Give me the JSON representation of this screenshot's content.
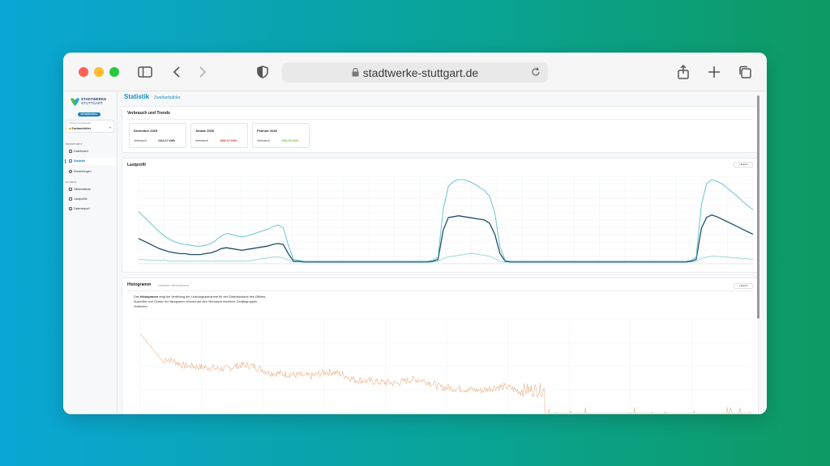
{
  "browser": {
    "url": "stadtwerke-stuttgart.de"
  },
  "sidebar": {
    "brand_line1": "STADTWERKE",
    "brand_line2": "STUTTGART",
    "role_badge": "NUTZERPORTAL",
    "meter_label": "ZÄHLER AUSWÄHLEN",
    "meter_value": "Zweitanfzähler",
    "section_measurement": "MESSPUNKT",
    "section_global": "GLOBAL",
    "items": [
      {
        "label": "Dashboard",
        "icon": "dashboard-icon"
      },
      {
        "label": "Statistik",
        "icon": "chart-icon",
        "active": true
      },
      {
        "label": "Einstellungen",
        "icon": "gear-icon"
      },
      {
        "label": "Zählerstände",
        "icon": "meter-icon"
      },
      {
        "label": "Lastprofile",
        "icon": "profile-icon"
      },
      {
        "label": "Datenexport",
        "icon": "file-icon"
      }
    ]
  },
  "page": {
    "title": "Statistik",
    "subtitle": "Zweitanfzähler"
  },
  "trends": {
    "title": "Verbrauch und Trends",
    "months": [
      {
        "month": "Dezember 2025",
        "label": "Verbrauch",
        "value": "1413.17 kWh",
        "trend": "none"
      },
      {
        "month": "Januar 2026",
        "label": "Verbrauch",
        "value": "1886.22 kWh ↑",
        "trend": "up"
      },
      {
        "month": "Februar 2026",
        "label": "Verbrauch",
        "value": "1081.53 kWh ↓",
        "trend": "down"
      }
    ]
  },
  "lastprofil": {
    "title": "Lastprofil",
    "export_label": "⤓ Export"
  },
  "histogram": {
    "title": "Histogramm",
    "subtitle": "Gesamter Messzeitraum",
    "export_label": "⤓ Export",
    "description_prefix": "Das ",
    "description_bold": "Histogramm",
    "description_rest": " zeigt die Verteilung der Leistungsaufnahme für den Datenbestand des Zählers. Ausreißer und Cluster im Histogramm können auf den Verbrauch einzelner Gerätegruppen hindeuten."
  },
  "colors": {
    "accent": "#1b8fc2",
    "series_light": "#6cc4cf",
    "series_dark": "#1f4f66",
    "histogram": "#e9b48c"
  },
  "chart_data": [
    {
      "type": "line",
      "title": "Lastprofil",
      "x_count": 120,
      "series": [
        {
          "name": "",
          "color": "#6cc4cf",
          "values": [
            0.62,
            0.56,
            0.5,
            0.44,
            0.38,
            0.33,
            0.29,
            0.26,
            0.24,
            0.23,
            0.22,
            0.21,
            0.21,
            0.22,
            0.24,
            0.28,
            0.33,
            0.36,
            0.35,
            0.33,
            0.32,
            0.33,
            0.35,
            0.37,
            0.39,
            0.41,
            0.44,
            0.46,
            0.43,
            0.22,
            0.05,
            0.04,
            0.03,
            0.03,
            0.03,
            0.03,
            0.03,
            0.03,
            0.03,
            0.03,
            0.03,
            0.03,
            0.03,
            0.03,
            0.03,
            0.03,
            0.03,
            0.03,
            0.03,
            0.03,
            0.03,
            0.03,
            0.03,
            0.03,
            0.03,
            0.03,
            0.03,
            0.04,
            0.08,
            0.65,
            0.92,
            0.98,
            1.0,
            1.0,
            0.98,
            0.95,
            0.91,
            0.87,
            0.8,
            0.6,
            0.2,
            0.04,
            0.03,
            0.03,
            0.03,
            0.03,
            0.03,
            0.03,
            0.03,
            0.03,
            0.03,
            0.03,
            0.03,
            0.03,
            0.03,
            0.03,
            0.03,
            0.03,
            0.03,
            0.03,
            0.03,
            0.03,
            0.03,
            0.03,
            0.03,
            0.03,
            0.03,
            0.03,
            0.03,
            0.03,
            0.03,
            0.03,
            0.03,
            0.03,
            0.03,
            0.03,
            0.03,
            0.04,
            0.08,
            0.7,
            0.95,
            1.0,
            0.98,
            0.95,
            0.9,
            0.85,
            0.8,
            0.74,
            0.69,
            0.64
          ]
        },
        {
          "name": "",
          "color": "#1f4f66",
          "values": [
            0.3,
            0.27,
            0.24,
            0.21,
            0.18,
            0.16,
            0.14,
            0.13,
            0.12,
            0.12,
            0.11,
            0.11,
            0.11,
            0.12,
            0.13,
            0.15,
            0.18,
            0.19,
            0.18,
            0.17,
            0.16,
            0.17,
            0.18,
            0.19,
            0.2,
            0.21,
            0.23,
            0.24,
            0.23,
            0.12,
            0.03,
            0.03,
            0.02,
            0.02,
            0.02,
            0.02,
            0.02,
            0.02,
            0.02,
            0.02,
            0.02,
            0.02,
            0.02,
            0.02,
            0.02,
            0.02,
            0.02,
            0.02,
            0.02,
            0.02,
            0.02,
            0.02,
            0.02,
            0.02,
            0.02,
            0.02,
            0.02,
            0.03,
            0.05,
            0.4,
            0.55,
            0.56,
            0.57,
            0.56,
            0.55,
            0.54,
            0.53,
            0.52,
            0.48,
            0.35,
            0.12,
            0.03,
            0.02,
            0.02,
            0.02,
            0.02,
            0.02,
            0.02,
            0.02,
            0.02,
            0.02,
            0.02,
            0.02,
            0.02,
            0.02,
            0.02,
            0.02,
            0.02,
            0.02,
            0.02,
            0.02,
            0.02,
            0.02,
            0.02,
            0.02,
            0.02,
            0.02,
            0.02,
            0.02,
            0.02,
            0.02,
            0.02,
            0.02,
            0.02,
            0.02,
            0.02,
            0.02,
            0.03,
            0.05,
            0.42,
            0.55,
            0.58,
            0.56,
            0.53,
            0.5,
            0.47,
            0.44,
            0.41,
            0.38,
            0.35
          ]
        },
        {
          "name": "",
          "color": "#9fd6de",
          "values": [
            0.05,
            0.05,
            0.04,
            0.04,
            0.04,
            0.04,
            0.03,
            0.03,
            0.03,
            0.03,
            0.03,
            0.03,
            0.03,
            0.03,
            0.03,
            0.03,
            0.03,
            0.03,
            0.03,
            0.03,
            0.03,
            0.03,
            0.04,
            0.05,
            0.06,
            0.07,
            0.08,
            0.08,
            0.07,
            0.04,
            0.02,
            0.02,
            0.02,
            0.02,
            0.02,
            0.02,
            0.02,
            0.02,
            0.02,
            0.02,
            0.02,
            0.02,
            0.02,
            0.02,
            0.02,
            0.02,
            0.02,
            0.02,
            0.02,
            0.02,
            0.02,
            0.02,
            0.02,
            0.02,
            0.02,
            0.02,
            0.02,
            0.02,
            0.03,
            0.06,
            0.08,
            0.09,
            0.1,
            0.11,
            0.12,
            0.12,
            0.11,
            0.1,
            0.09,
            0.06,
            0.03,
            0.02,
            0.02,
            0.02,
            0.02,
            0.02,
            0.02,
            0.02,
            0.02,
            0.02,
            0.02,
            0.02,
            0.02,
            0.02,
            0.02,
            0.02,
            0.02,
            0.02,
            0.02,
            0.02,
            0.02,
            0.02,
            0.02,
            0.02,
            0.02,
            0.02,
            0.02,
            0.02,
            0.02,
            0.02,
            0.02,
            0.02,
            0.02,
            0.02,
            0.02,
            0.02,
            0.02,
            0.02,
            0.03,
            0.06,
            0.08,
            0.09,
            0.09,
            0.08,
            0.08,
            0.07,
            0.07,
            0.06,
            0.06,
            0.05
          ]
        }
      ],
      "grid": true
    },
    {
      "type": "histogram",
      "title": "Histogramm",
      "color": "#e9b48c",
      "scale": "log",
      "grid": true
    }
  ]
}
